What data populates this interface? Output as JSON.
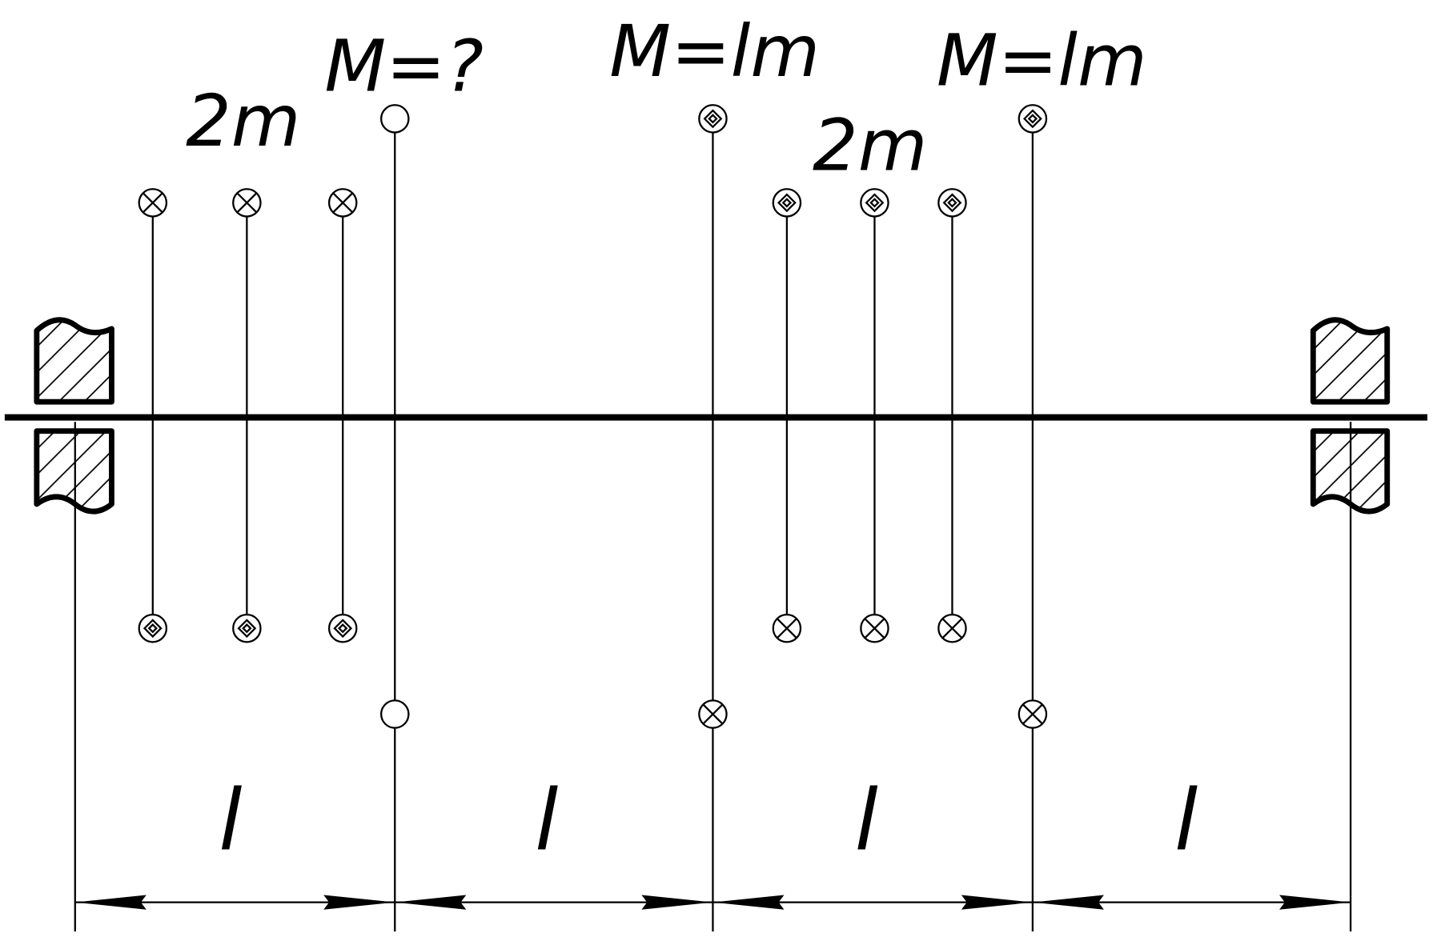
{
  "labels": {
    "left_masses": "2m",
    "mass_a": "M=?",
    "mass_b": "M=lm",
    "right_masses": "2m",
    "mass_c": "M=lm"
  },
  "dimensions": [
    "l",
    "l",
    "l",
    "l"
  ]
}
